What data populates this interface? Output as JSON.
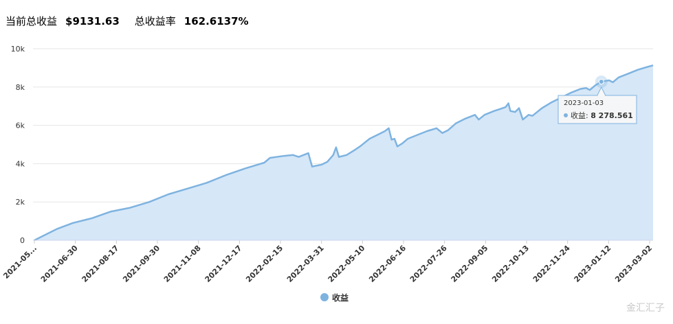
{
  "header": {
    "total_profit_label": "当前总收益",
    "total_profit_value": "$9131.63",
    "total_rate_label": "总收益率",
    "total_rate_value": "162.6137%"
  },
  "watermark": "金汇汇子",
  "tooltip": {
    "date": "2023-01-03",
    "series_label": "收益:",
    "value": "8 278.561"
  },
  "chart_data": {
    "type": "area",
    "x_tick_labels": [
      "2021-05...",
      "2021-06-30",
      "2021-08-17",
      "2021-09-30",
      "2021-11-08",
      "2021-12-17",
      "2022-02-15",
      "2022-03-31",
      "2022-05-10",
      "2022-06-16",
      "2022-07-26",
      "2022-09-05",
      "2022-10-13",
      "2022-11-24",
      "2023-01-12",
      "2023-03-02"
    ],
    "y_tick_labels": [
      "0",
      "2k",
      "4k",
      "6k",
      "8k",
      "10k"
    ],
    "ylim": [
      0,
      10000
    ],
    "grid": true,
    "legend": {
      "position": "bottom",
      "label": "收益"
    },
    "color": "#7eb3e0",
    "fill_color": "#d6e7f7",
    "series": [
      {
        "name": "收益",
        "points": [
          [
            0,
            0
          ],
          [
            0.5,
            250
          ],
          [
            1.2,
            600
          ],
          [
            2,
            900
          ],
          [
            3,
            1150
          ],
          [
            4,
            1500
          ],
          [
            5,
            1700
          ],
          [
            6,
            2000
          ],
          [
            7,
            2400
          ],
          [
            8,
            2700
          ],
          [
            9,
            3000
          ],
          [
            10,
            3400
          ],
          [
            11,
            3750
          ],
          [
            12,
            4050
          ],
          [
            12.3,
            4300
          ],
          [
            13,
            4400
          ],
          [
            13.5,
            4450
          ],
          [
            13.8,
            4350
          ],
          [
            14.3,
            4550
          ],
          [
            14.5,
            3850
          ],
          [
            15,
            3950
          ],
          [
            15.3,
            4100
          ],
          [
            15.6,
            4450
          ],
          [
            15.75,
            4850
          ],
          [
            15.9,
            4350
          ],
          [
            16.3,
            4450
          ],
          [
            16.7,
            4700
          ],
          [
            17,
            4900
          ],
          [
            17.5,
            5300
          ],
          [
            18,
            5550
          ],
          [
            18.3,
            5700
          ],
          [
            18.5,
            5850
          ],
          [
            18.65,
            5250
          ],
          [
            18.8,
            5300
          ],
          [
            18.95,
            4900
          ],
          [
            19.2,
            5050
          ],
          [
            19.5,
            5300
          ],
          [
            20,
            5500
          ],
          [
            20.5,
            5700
          ],
          [
            21,
            5850
          ],
          [
            21.3,
            5600
          ],
          [
            21.6,
            5750
          ],
          [
            22,
            6100
          ],
          [
            22.5,
            6350
          ],
          [
            23,
            6550
          ],
          [
            23.2,
            6300
          ],
          [
            23.5,
            6550
          ],
          [
            24,
            6750
          ],
          [
            24.3,
            6850
          ],
          [
            24.6,
            6950
          ],
          [
            24.75,
            7150
          ],
          [
            24.85,
            6750
          ],
          [
            25.1,
            6700
          ],
          [
            25.3,
            6900
          ],
          [
            25.5,
            6300
          ],
          [
            25.8,
            6550
          ],
          [
            26,
            6500
          ],
          [
            26.5,
            6900
          ],
          [
            27,
            7200
          ],
          [
            27.5,
            7450
          ],
          [
            28,
            7700
          ],
          [
            28.5,
            7900
          ],
          [
            28.8,
            7950
          ],
          [
            29,
            7850
          ],
          [
            29.3,
            8100
          ],
          [
            29.6,
            8278.561
          ],
          [
            30,
            8350
          ],
          [
            30.2,
            8250
          ],
          [
            30.5,
            8500
          ],
          [
            31,
            8700
          ],
          [
            31.5,
            8900
          ],
          [
            32,
            9050
          ],
          [
            32.3,
            9131.63
          ]
        ]
      }
    ],
    "tooltip_point": {
      "x_index": 29.6,
      "y": 8278.561
    }
  }
}
